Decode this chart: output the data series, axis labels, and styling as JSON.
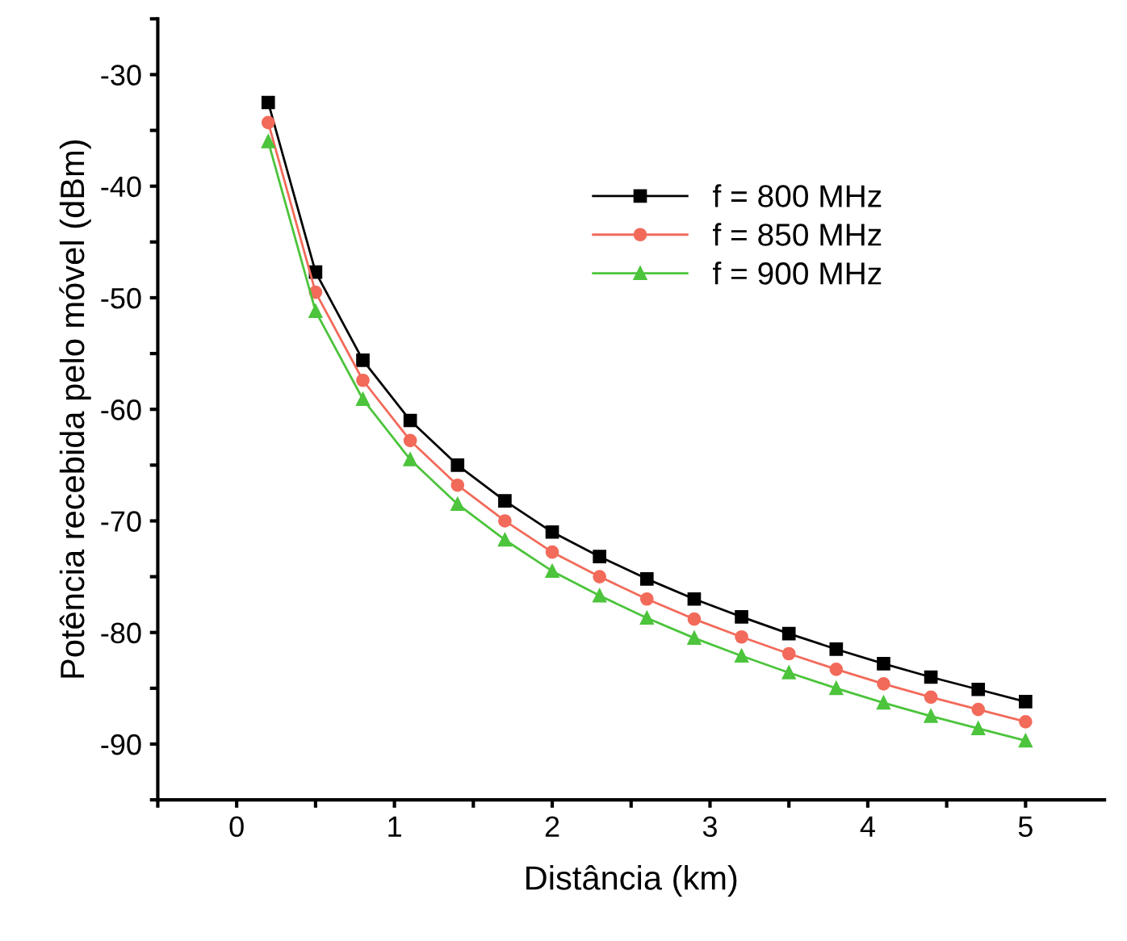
{
  "chart_data": {
    "type": "line",
    "xlabel": "Distância (km)",
    "ylabel": "Potência recebida pelo móvel (dBm)",
    "x": [
      0.2,
      0.5,
      0.8,
      1.1,
      1.4,
      1.7,
      2.0,
      2.3,
      2.6,
      2.9,
      3.2,
      3.5,
      3.8,
      4.1,
      4.4,
      4.7,
      5.0
    ],
    "series": [
      {
        "name": "f = 800 MHz",
        "color": "#000000",
        "marker": "square",
        "values": [
          -32.5,
          -47.7,
          -55.6,
          -61.0,
          -65.0,
          -68.2,
          -71.0,
          -73.2,
          -75.2,
          -77.0,
          -78.6,
          -80.1,
          -81.5,
          -82.8,
          -84.0,
          -85.1,
          -86.2
        ]
      },
      {
        "name": "f = 850 MHz",
        "color": "#f26a5a",
        "marker": "circle",
        "values": [
          -34.3,
          -49.5,
          -57.4,
          -62.8,
          -66.8,
          -70.0,
          -72.8,
          -75.0,
          -77.0,
          -78.8,
          -80.4,
          -81.9,
          -83.3,
          -84.6,
          -85.8,
          -86.9,
          -88.0
        ]
      },
      {
        "name": "f = 900 MHz",
        "color": "#4cc43c",
        "marker": "triangle",
        "values": [
          -36.0,
          -51.2,
          -59.1,
          -64.5,
          -68.5,
          -71.7,
          -74.5,
          -76.7,
          -78.7,
          -80.5,
          -82.1,
          -83.6,
          -85.0,
          -86.3,
          -87.5,
          -88.6,
          -89.7
        ]
      }
    ],
    "xlim": [
      -0.5,
      5.5
    ],
    "xticks": [
      {
        "value": -0.5,
        "label": null
      },
      0,
      {
        "value": 0.5,
        "label": null
      },
      1,
      {
        "value": 1.5,
        "label": null
      },
      2,
      {
        "value": 2.5,
        "label": null
      },
      3,
      {
        "value": 3.5,
        "label": null
      },
      4,
      {
        "value": 4.5,
        "label": null
      },
      5
    ],
    "ylim": [
      -95,
      -25
    ],
    "yticks": [
      {
        "value": -95,
        "label": null
      },
      -90,
      {
        "value": -85,
        "label": null
      },
      -80,
      {
        "value": -75,
        "label": null
      },
      -70,
      {
        "value": -65,
        "label": null
      },
      -60,
      {
        "value": -55,
        "label": null
      },
      -50,
      {
        "value": -45,
        "label": null
      },
      -40,
      {
        "value": -35,
        "label": null
      },
      -30,
      {
        "value": -25,
        "label": null
      }
    ],
    "grid": false,
    "legend": "right",
    "line_style": "solid"
  }
}
